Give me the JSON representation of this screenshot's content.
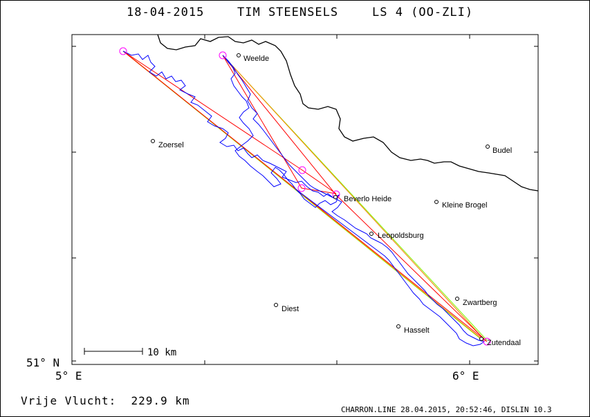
{
  "header": {
    "date": "18-04-2015",
    "pilot": "TIM STEENSELS",
    "glider": "LS 4 (OO-ZLI)"
  },
  "axes": {
    "y_label": "51° N",
    "x_label_left": "5° E",
    "x_label_right": "6° E"
  },
  "scale_bar": {
    "label": "10 km"
  },
  "places": [
    {
      "name": "Weelde"
    },
    {
      "name": "Zoersel"
    },
    {
      "name": "Budel"
    },
    {
      "name": "Beverlo Heide"
    },
    {
      "name": "Kleine Brogel"
    },
    {
      "name": "Leopoldsburg"
    },
    {
      "name": "Zwartberg"
    },
    {
      "name": "Diest"
    },
    {
      "name": "Hasselt"
    },
    {
      "name": "Zutendaal"
    }
  ],
  "colors": {
    "track": "#0000ff",
    "task_red": "#ff0000",
    "task_green": "#80ff00",
    "task_orange": "#ff8000",
    "turnpoint": "#ff00ff",
    "border": "#000000"
  },
  "footer": {
    "distance_label": "Vrije Vlucht:",
    "distance_value": "229.9 km",
    "credit": "CHARRON.LINE 28.04.2015, 20:52:46, DISLIN 10.3"
  }
}
